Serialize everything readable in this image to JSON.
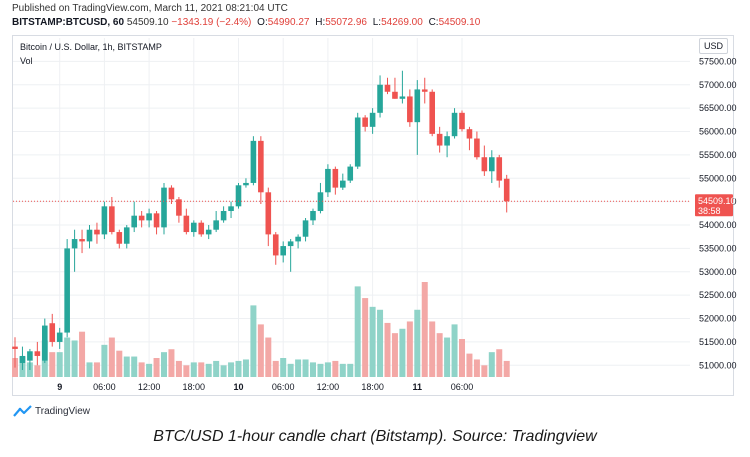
{
  "header": {
    "published": "Published on TradingView.com, March 11, 2021 08:21:04 UTC",
    "symbol": "BITSTAMP:BTCUSD, 60",
    "last": "54509.10",
    "change": "−1343.19 (−2.4%)",
    "o_label": "O:",
    "o_value": "54990.27",
    "h_label": "H:",
    "h_value": "55072.96",
    "l_label": "L:",
    "l_value": "54269.00",
    "c_label": "C:",
    "c_value": "54509.10"
  },
  "legend": {
    "title": "Bitcoin / U.S. Dollar, 1h, BITSTAMP",
    "vol": "Vol"
  },
  "axis": {
    "currency": "USD"
  },
  "price_marker": {
    "price": "54509.10",
    "countdown": "38:58"
  },
  "brand": {
    "name": "TradingView"
  },
  "caption": "BTC/USD 1-hour candle chart (Bitstamp). Source: Tradingview",
  "colors": {
    "up": "#26a69a",
    "down": "#ef5350",
    "vol_up": "#8fd3c8",
    "vol_down": "#f3a8a6",
    "grid": "#eef0f3",
    "brand": "#2196f3"
  },
  "chart_data": {
    "type": "candlestick",
    "title": "Bitcoin / U.S. Dollar, 1h, BITSTAMP",
    "ylabel": "USD",
    "ylim": [
      50750,
      58000
    ],
    "yticks": [
      51000,
      51500,
      52000,
      52500,
      53000,
      53500,
      54000,
      54500,
      55000,
      55500,
      56000,
      56500,
      57000,
      57500
    ],
    "xlabels": [
      "9",
      "06:00",
      "12:00",
      "18:00",
      "10",
      "06:00",
      "12:00",
      "18:00",
      "11",
      "06:00"
    ],
    "xlabel_index": [
      6,
      12,
      18,
      24,
      30,
      36,
      42,
      48,
      54,
      60
    ],
    "grid": true,
    "current_price": 54509.1,
    "candles": [
      {
        "o": 51400,
        "h": 51600,
        "l": 50950,
        "c": 51350
      },
      {
        "o": 51050,
        "h": 51400,
        "l": 50900,
        "c": 51200
      },
      {
        "o": 51100,
        "h": 51350,
        "l": 50900,
        "c": 51300
      },
      {
        "o": 51300,
        "h": 51500,
        "l": 51000,
        "c": 51200
      },
      {
        "o": 51100,
        "h": 52000,
        "l": 51050,
        "c": 51850
      },
      {
        "o": 51900,
        "h": 52100,
        "l": 51400,
        "c": 51500
      },
      {
        "o": 51500,
        "h": 51800,
        "l": 51350,
        "c": 51700
      },
      {
        "o": 51700,
        "h": 53700,
        "l": 51600,
        "c": 53500
      },
      {
        "o": 53500,
        "h": 53900,
        "l": 53000,
        "c": 53700
      },
      {
        "o": 53700,
        "h": 53900,
        "l": 53400,
        "c": 53650
      },
      {
        "o": 53650,
        "h": 54000,
        "l": 53500,
        "c": 53900
      },
      {
        "o": 53900,
        "h": 54050,
        "l": 53600,
        "c": 53800
      },
      {
        "o": 53800,
        "h": 54500,
        "l": 53700,
        "c": 54400
      },
      {
        "o": 54400,
        "h": 54600,
        "l": 53800,
        "c": 53850
      },
      {
        "o": 53850,
        "h": 53900,
        "l": 53500,
        "c": 53600
      },
      {
        "o": 53600,
        "h": 54000,
        "l": 53500,
        "c": 53950
      },
      {
        "o": 53950,
        "h": 54500,
        "l": 53850,
        "c": 54200
      },
      {
        "o": 54200,
        "h": 54300,
        "l": 53950,
        "c": 54100
      },
      {
        "o": 54100,
        "h": 54350,
        "l": 53950,
        "c": 54250
      },
      {
        "o": 54250,
        "h": 54300,
        "l": 53800,
        "c": 53950
      },
      {
        "o": 53950,
        "h": 54900,
        "l": 53800,
        "c": 54800
      },
      {
        "o": 54800,
        "h": 54850,
        "l": 54450,
        "c": 54550
      },
      {
        "o": 54550,
        "h": 54600,
        "l": 54050,
        "c": 54200
      },
      {
        "o": 54200,
        "h": 54350,
        "l": 53800,
        "c": 53850
      },
      {
        "o": 53850,
        "h": 54100,
        "l": 53750,
        "c": 54050
      },
      {
        "o": 54050,
        "h": 54100,
        "l": 53750,
        "c": 53800
      },
      {
        "o": 53800,
        "h": 54000,
        "l": 53700,
        "c": 53900
      },
      {
        "o": 53900,
        "h": 54300,
        "l": 53850,
        "c": 54100
      },
      {
        "o": 54100,
        "h": 54400,
        "l": 54050,
        "c": 54300
      },
      {
        "o": 54300,
        "h": 54500,
        "l": 54150,
        "c": 54400
      },
      {
        "o": 54400,
        "h": 54900,
        "l": 54350,
        "c": 54850
      },
      {
        "o": 54850,
        "h": 55000,
        "l": 54800,
        "c": 54900
      },
      {
        "o": 54900,
        "h": 55900,
        "l": 54850,
        "c": 55800
      },
      {
        "o": 55800,
        "h": 55900,
        "l": 54450,
        "c": 54700
      },
      {
        "o": 54700,
        "h": 54800,
        "l": 53550,
        "c": 53800
      },
      {
        "o": 53800,
        "h": 53850,
        "l": 53150,
        "c": 53350
      },
      {
        "o": 53350,
        "h": 53650,
        "l": 53200,
        "c": 53550
      },
      {
        "o": 53550,
        "h": 53700,
        "l": 53000,
        "c": 53650
      },
      {
        "o": 53650,
        "h": 53800,
        "l": 53500,
        "c": 53750
      },
      {
        "o": 53750,
        "h": 54150,
        "l": 53650,
        "c": 54100
      },
      {
        "o": 54100,
        "h": 54350,
        "l": 54000,
        "c": 54300
      },
      {
        "o": 54300,
        "h": 54900,
        "l": 54250,
        "c": 54700
      },
      {
        "o": 54700,
        "h": 55300,
        "l": 54600,
        "c": 55200
      },
      {
        "o": 55200,
        "h": 55250,
        "l": 54650,
        "c": 54800
      },
      {
        "o": 54800,
        "h": 55100,
        "l": 54750,
        "c": 54950
      },
      {
        "o": 54950,
        "h": 55300,
        "l": 54900,
        "c": 55250
      },
      {
        "o": 55250,
        "h": 56400,
        "l": 55200,
        "c": 56300
      },
      {
        "o": 56300,
        "h": 56350,
        "l": 56000,
        "c": 56100
      },
      {
        "o": 56100,
        "h": 56500,
        "l": 55950,
        "c": 56400
      },
      {
        "o": 56400,
        "h": 57200,
        "l": 56300,
        "c": 57000
      },
      {
        "o": 57000,
        "h": 57150,
        "l": 56800,
        "c": 56850
      },
      {
        "o": 56850,
        "h": 57150,
        "l": 56700,
        "c": 56700
      },
      {
        "o": 56700,
        "h": 57300,
        "l": 56600,
        "c": 56750
      },
      {
        "o": 56750,
        "h": 56900,
        "l": 56100,
        "c": 56200
      },
      {
        "o": 56200,
        "h": 57100,
        "l": 55500,
        "c": 56900
      },
      {
        "o": 56900,
        "h": 57150,
        "l": 56600,
        "c": 56850
      },
      {
        "o": 56850,
        "h": 56900,
        "l": 55900,
        "c": 55950
      },
      {
        "o": 55950,
        "h": 56100,
        "l": 55550,
        "c": 55700
      },
      {
        "o": 55700,
        "h": 56000,
        "l": 55450,
        "c": 55900
      },
      {
        "o": 55900,
        "h": 56500,
        "l": 55850,
        "c": 56400
      },
      {
        "o": 56400,
        "h": 56450,
        "l": 56000,
        "c": 56050
      },
      {
        "o": 56050,
        "h": 56100,
        "l": 55600,
        "c": 55850
      },
      {
        "o": 55850,
        "h": 56000,
        "l": 55400,
        "c": 55450
      },
      {
        "o": 55450,
        "h": 55700,
        "l": 55050,
        "c": 55150
      },
      {
        "o": 55150,
        "h": 55600,
        "l": 54900,
        "c": 55450
      },
      {
        "o": 55450,
        "h": 55500,
        "l": 54800,
        "c": 54950
      },
      {
        "o": 54990,
        "h": 55073,
        "l": 54269,
        "c": 54509
      }
    ],
    "volume": [
      1.3,
      1.4,
      1.0,
      0.8,
      2.5,
      1.7,
      1.7,
      2.7,
      2.5,
      3.1,
      1.0,
      1.0,
      2.2,
      2.7,
      1.8,
      1.4,
      1.4,
      1.0,
      0.9,
      1.3,
      1.7,
      1.9,
      1.1,
      0.8,
      1.0,
      1.0,
      0.9,
      1.1,
      0.8,
      1.0,
      1.1,
      1.2,
      4.9,
      3.6,
      2.7,
      1.1,
      1.3,
      0.9,
      1.2,
      1.2,
      1.0,
      0.9,
      1.0,
      1.1,
      0.9,
      0.9,
      6.2,
      5.4,
      4.8,
      4.6,
      3.7,
      3.0,
      3.3,
      3.8,
      4.6,
      6.5,
      3.8,
      3.0,
      2.7,
      3.6,
      2.6,
      1.6,
      1.2,
      0.8,
      1.7,
      1.9,
      1.1
    ],
    "volume_unit": "relative"
  }
}
